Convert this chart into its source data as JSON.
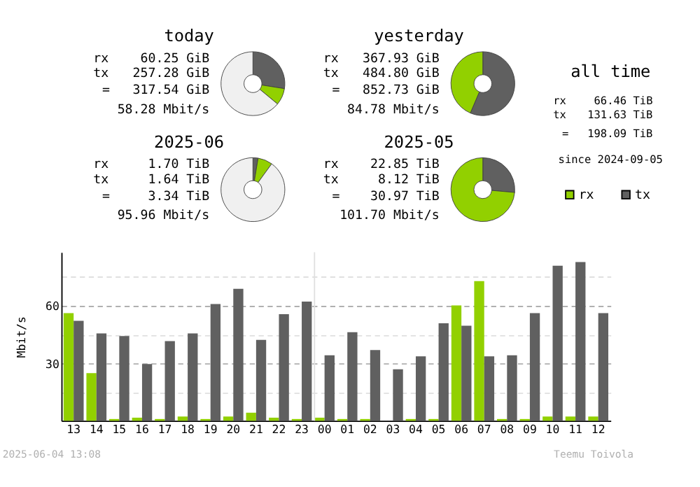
{
  "chart_data": [
    {
      "type": "donut",
      "title": "today",
      "categories": [
        null,
        null,
        null
      ],
      "values": [
        27.5,
        8.5,
        64.0
      ],
      "colors": [
        "#606060",
        "#92d000",
        "#f0f0f0"
      ],
      "annotations": [
        "rx",
        "60.25 GiB",
        "tx",
        "257.28 GiB",
        "=",
        "317.54 GiB",
        "58.28 Mbit/s"
      ]
    },
    {
      "type": "donut",
      "title": "yesterday",
      "categories": [
        null,
        null
      ],
      "values": [
        56.4,
        43.6
      ],
      "colors": [
        "#606060",
        "#92d000"
      ],
      "annotations": [
        "rx",
        "367.93 GiB",
        "tx",
        "484.80 GiB",
        "=",
        "852.73 GiB",
        "84.78 Mbit/s"
      ]
    },
    {
      "type": "other",
      "title": "all time",
      "annotations": [
        "rx",
        "66.46 TiB",
        "tx",
        "131.63 TiB",
        "=",
        "198.09 TiB",
        "since 2024-09-05"
      ]
    },
    {
      "type": "donut",
      "title": "2025-06",
      "categories": [
        null,
        null,
        null
      ],
      "values": [
        2.6,
        7.4,
        90.0
      ],
      "colors": [
        "#606060",
        "#92d000",
        "#f0f0f0"
      ],
      "annotations": [
        "rx",
        "1.70 TiB",
        "tx",
        "1.64 TiB",
        "=",
        "3.34 TiB",
        "95.96 Mbit/s"
      ]
    },
    {
      "type": "donut",
      "title": "2025-05",
      "categories": [
        null,
        null
      ],
      "values": [
        26.4,
        73.6
      ],
      "colors": [
        "#606060",
        "#92d000"
      ],
      "annotations": [
        "rx",
        "22.85 TiB",
        "tx",
        "8.12 TiB",
        "=",
        "30.97 TiB",
        "101.70 Mbit/s"
      ]
    },
    {
      "type": "bar",
      "ylabel": "Mbit/s",
      "categories": [
        "13",
        "14",
        "15",
        "16",
        "17",
        "18",
        "19",
        "20",
        "21",
        "22",
        "23",
        "00",
        "01",
        "02",
        "03",
        "04",
        "05",
        "06",
        "07",
        "08",
        "09",
        "10",
        "11",
        "12"
      ],
      "series": [
        {
          "name": "rx",
          "color": "#92d000",
          "values": [
            56.2,
            24.9,
            0.9,
            1.6,
            0.9,
            2.2,
            0.9,
            2.2,
            4.2,
            1.6,
            0.9,
            1.6,
            0.9,
            0.9,
            null,
            0.9,
            0.9,
            60.2,
            72.9,
            0.9,
            0.9,
            2.2,
            2.2,
            2.2
          ]
        },
        {
          "name": "tx",
          "color": "#606060",
          "values": [
            52.2,
            45.6,
            44.2,
            29.6,
            41.6,
            45.6,
            60.9,
            68.9,
            42.2,
            55.6,
            62.2,
            34.2,
            46.2,
            36.9,
            26.9,
            33.6,
            50.9,
            49.6,
            33.6,
            34.2,
            56.2,
            80.9,
            82.9,
            56.2
          ]
        }
      ],
      "ylim": [
        0,
        88
      ],
      "yticks": [
        {
          "value": 15,
          "label": null
        },
        30,
        {
          "value": 45,
          "label": null
        },
        60,
        {
          "value": 75,
          "label": null
        }
      ],
      "grid": "y",
      "legend": "top right",
      "ref_lines": [
        {
          "axis": "x",
          "value": "00",
          "color": "#e0e0e0"
        }
      ],
      "annotations": [
        "2025-06-04 13:08",
        "Teemu Toivola"
      ]
    }
  ]
}
